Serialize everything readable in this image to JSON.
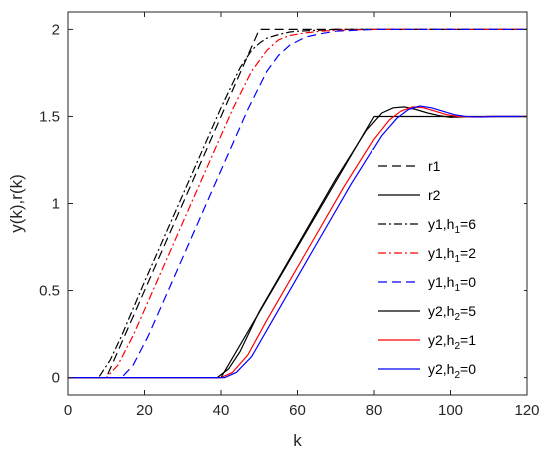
{
  "chart_data": {
    "type": "line",
    "xlabel": "k",
    "ylabel": "y(k),r(k)",
    "xlim": [
      0,
      120
    ],
    "ylim": [
      -0.1,
      2.1
    ],
    "xticks": [
      0,
      20,
      40,
      60,
      80,
      100,
      120
    ],
    "yticks": [
      0,
      0.5,
      1,
      1.5,
      2
    ],
    "xtick_labels": [
      "0",
      "20",
      "40",
      "60",
      "80",
      "100",
      "120"
    ],
    "ytick_labels": [
      "0",
      "0.5",
      "1",
      "1.5",
      "2"
    ],
    "grid": false,
    "legend_position": "right",
    "series": [
      {
        "name": "r1",
        "color": "#000000",
        "dash": "dashed",
        "x": [
          0,
          10,
          50,
          120
        ],
        "y": [
          0,
          0,
          2,
          2
        ]
      },
      {
        "name": "r2",
        "color": "#000000",
        "dash": "solid",
        "x": [
          0,
          40,
          80,
          120
        ],
        "y": [
          0,
          0,
          1.5,
          1.5
        ]
      },
      {
        "name": "y1,h",
        "sub": "1",
        "suffix": "=6",
        "color": "#000000",
        "dash": "dashdot",
        "x": [
          0,
          8,
          11,
          14,
          20,
          30,
          40,
          45,
          48,
          50,
          52,
          55,
          58,
          60,
          65,
          70,
          80,
          120
        ],
        "y": [
          0,
          0,
          0.1,
          0.24,
          0.55,
          1.05,
          1.55,
          1.78,
          1.88,
          1.92,
          1.95,
          1.97,
          1.985,
          1.99,
          1.995,
          2,
          2,
          2
        ]
      },
      {
        "name": "y1,h",
        "sub": "1",
        "suffix": "=2",
        "color": "#ff0000",
        "dash": "dashdot",
        "x": [
          0,
          10,
          13,
          17,
          23,
          33,
          43,
          48,
          52,
          55,
          58,
          62,
          66,
          70,
          80,
          120
        ],
        "y": [
          0,
          0,
          0.07,
          0.24,
          0.54,
          1.04,
          1.54,
          1.76,
          1.88,
          1.94,
          1.965,
          1.98,
          1.99,
          1.995,
          2,
          2
        ]
      },
      {
        "name": "y1,h",
        "sub": "1",
        "suffix": "=0",
        "color": "#0000ff",
        "dash": "dashed",
        "x": [
          0,
          14,
          17,
          21,
          27,
          37,
          47,
          52,
          55,
          58,
          62,
          66,
          70,
          75,
          80,
          120
        ],
        "y": [
          0,
          0,
          0.07,
          0.24,
          0.54,
          1.04,
          1.54,
          1.76,
          1.85,
          1.91,
          1.955,
          1.975,
          1.99,
          1.995,
          2,
          2
        ]
      },
      {
        "name": "y2,h",
        "sub": "2",
        "suffix": "=5",
        "color": "#000000",
        "dash": "solid",
        "x": [
          0,
          39,
          42,
          45,
          50,
          60,
          70,
          78,
          82,
          85,
          88,
          91,
          94,
          97,
          100,
          105,
          110,
          120
        ],
        "y": [
          0,
          0,
          0.05,
          0.15,
          0.38,
          0.76,
          1.14,
          1.42,
          1.52,
          1.55,
          1.555,
          1.54,
          1.52,
          1.505,
          1.495,
          1.498,
          1.5,
          1.5
        ]
      },
      {
        "name": "y2,h",
        "sub": "2",
        "suffix": "=1",
        "color": "#ff0000",
        "dash": "solid",
        "x": [
          0,
          40,
          43,
          47,
          52,
          62,
          72,
          80,
          84,
          87,
          90,
          93,
          96,
          99,
          102,
          106,
          110,
          120
        ],
        "y": [
          0,
          0,
          0.03,
          0.13,
          0.33,
          0.71,
          1.09,
          1.37,
          1.48,
          1.53,
          1.555,
          1.55,
          1.53,
          1.51,
          1.5,
          1.497,
          1.5,
          1.5
        ]
      },
      {
        "name": "y2,h",
        "sub": "2",
        "suffix": "=0",
        "color": "#0000ff",
        "dash": "solid",
        "x": [
          0,
          41,
          44,
          48,
          54,
          64,
          74,
          82,
          86,
          89,
          92,
          95,
          98,
          101,
          104,
          108,
          112,
          120
        ],
        "y": [
          0,
          0,
          0.03,
          0.12,
          0.35,
          0.73,
          1.11,
          1.39,
          1.49,
          1.54,
          1.56,
          1.55,
          1.53,
          1.51,
          1.5,
          1.497,
          1.5,
          1.5
        ]
      }
    ]
  }
}
